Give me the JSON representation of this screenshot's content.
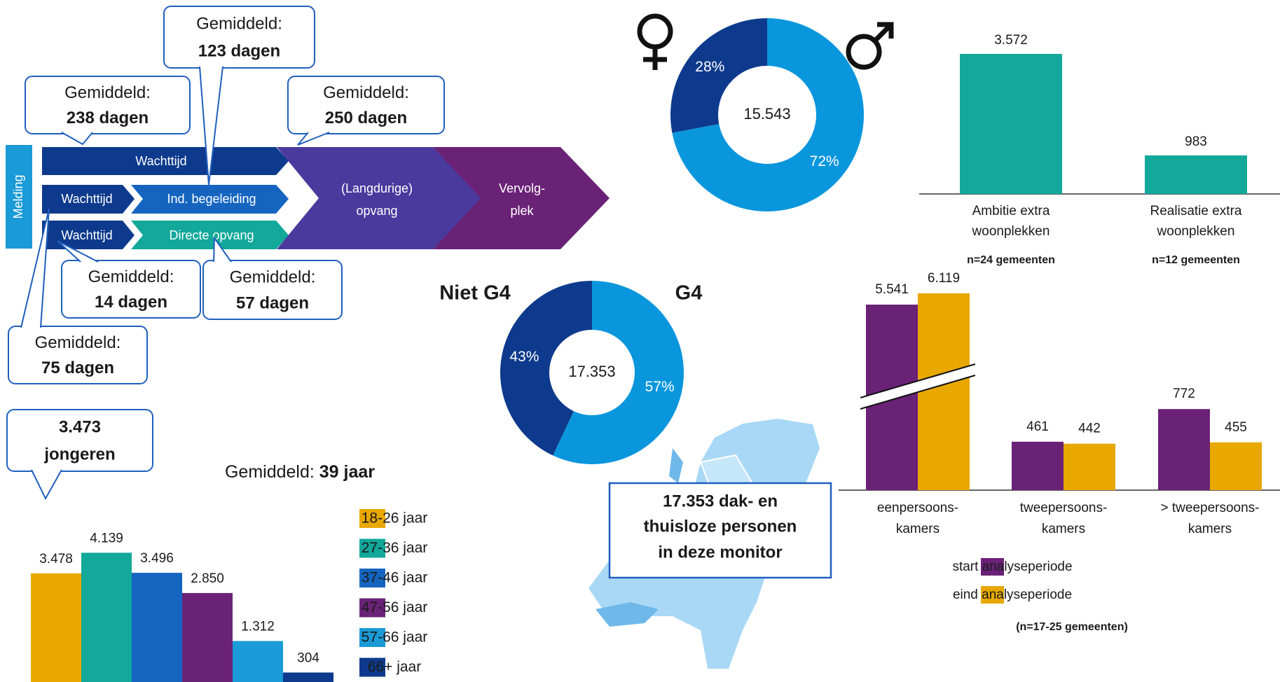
{
  "flow": {
    "start": "Melding",
    "steps": [
      {
        "label": "Wachttijd"
      },
      {
        "label": "Wachttijd"
      },
      {
        "label": "Ind. begeleiding"
      },
      {
        "label": "Wachttijd"
      },
      {
        "label": "Directe opvang"
      },
      {
        "lines": [
          "(Langdurige)",
          "opvang"
        ]
      },
      {
        "lines": [
          "Vervolg-",
          "plek"
        ]
      }
    ],
    "callouts": [
      {
        "label": "Gemiddeld:",
        "value": "238 dagen"
      },
      {
        "label": "Gemiddeld:",
        "value": "123 dagen"
      },
      {
        "label": "Gemiddeld:",
        "value": "250 dagen"
      },
      {
        "label": "Gemiddeld:",
        "value": "14 dagen"
      },
      {
        "label": "Gemiddeld:",
        "value": "57 dagen"
      },
      {
        "label": "Gemiddeld:",
        "value": "75 dagen"
      }
    ]
  },
  "youth_callout": [
    "3.473",
    "jongeren"
  ],
  "average_age": {
    "label": "Gemiddeld:",
    "value": "39 jaar"
  },
  "map_box": [
    "17.353 dak- en",
    "thuisloze personen",
    "in deze monitor"
  ],
  "chart_data": [
    {
      "type": "pie",
      "donut": true,
      "center_label": "15.543",
      "values": [
        28,
        72
      ],
      "value_labels": [
        "28%",
        "72%"
      ],
      "colors": [
        "#0d3a8c",
        "#0a96dc"
      ]
    },
    {
      "type": "pie",
      "donut": true,
      "center_label": "17.353",
      "categories": [
        "Niet G4",
        "G4"
      ],
      "values": [
        43,
        57
      ],
      "value_labels": [
        "43%",
        "57%"
      ],
      "colors": [
        "#0d3a8c",
        "#0a96dc"
      ]
    },
    {
      "type": "bar",
      "categories": [
        [
          "Ambitie extra",
          "woonplekken"
        ],
        [
          "Realisatie extra",
          "woonplekken"
        ]
      ],
      "notes": [
        "n=24 gemeenten",
        "n=12 gemeenten"
      ],
      "values": [
        3572,
        983
      ],
      "value_labels": [
        "3.572",
        "983"
      ],
      "color": "#12a89a"
    },
    {
      "type": "grouped_bar",
      "axis_break": true,
      "categories": [
        [
          "eenpersoons-",
          "kamers"
        ],
        [
          "tweepersoons-",
          "kamers"
        ],
        [
          "> tweepersoons-",
          "kamers"
        ]
      ],
      "series": [
        {
          "name": "start analyseperiode",
          "color": "#6a2277",
          "values": [
            5541,
            461,
            772
          ],
          "value_labels": [
            "5.541",
            "461",
            "772"
          ]
        },
        {
          "name": "eind analyseperiode",
          "color": "#e8a800",
          "values": [
            6119,
            442,
            455
          ],
          "value_labels": [
            "6.119",
            "442",
            "455"
          ]
        }
      ],
      "note": "(n=17-25 gemeenten)"
    },
    {
      "type": "age_bar",
      "categories": [
        "18-26 jaar",
        "27-36 jaar",
        "37-46 jaar",
        "47-56 jaar",
        "57-66 jaar",
        "66+ jaar"
      ],
      "values": [
        3478,
        4139,
        3496,
        2850,
        1312,
        304
      ],
      "value_labels": [
        "3.478",
        "4.139",
        "3.496",
        "2.850",
        "1.312",
        "304"
      ],
      "colors": [
        "#e8a800",
        "#12a89a",
        "#1565c0",
        "#6a2277",
        "#1a9ad6",
        "#0d3a8c"
      ]
    }
  ]
}
